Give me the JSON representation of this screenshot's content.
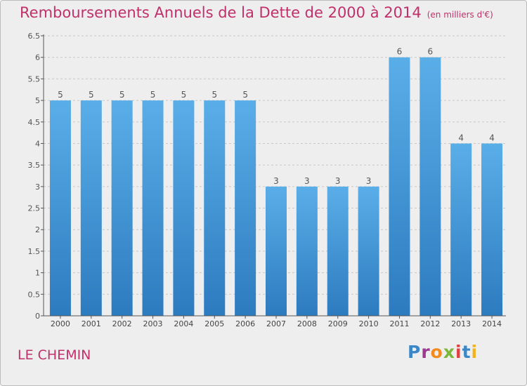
{
  "header": {
    "title": "Remboursements Annuels de la Dette de 2000 à 2014",
    "unit": "(en milliers d'€)"
  },
  "footer": {
    "commune": "LE CHEMIN",
    "logo": "Proxiti"
  },
  "colors": {
    "accent": "#c0306a",
    "bar_top": "#5aaee8",
    "bar_bottom": "#2d7bbf",
    "grid": "#c8c8c8",
    "axis": "#555555"
  },
  "chart_data": {
    "type": "bar",
    "title": "Remboursements Annuels de la Dette de 2000 à 2014",
    "xlabel": "",
    "ylabel": "",
    "categories": [
      "2000",
      "2001",
      "2002",
      "2003",
      "2004",
      "2005",
      "2006",
      "2007",
      "2008",
      "2009",
      "2010",
      "2011",
      "2012",
      "2013",
      "2014"
    ],
    "values": [
      5,
      5,
      5,
      5,
      5,
      5,
      5,
      3,
      3,
      3,
      3,
      6,
      6,
      4,
      4
    ],
    "value_labels": [
      "5",
      "5",
      "5",
      "5",
      "5",
      "5",
      "5",
      "3",
      "3",
      "3",
      "3",
      "6",
      "6",
      "4",
      "4"
    ],
    "y_ticks": [
      "0",
      "0.5",
      "1",
      "1.5",
      "2",
      "2.5",
      "3",
      "3.5",
      "4",
      "4.5",
      "5",
      "5.5",
      "6",
      "6.5"
    ],
    "ylim": [
      0,
      6.5
    ],
    "grid": true,
    "grid_style": "dashed"
  }
}
